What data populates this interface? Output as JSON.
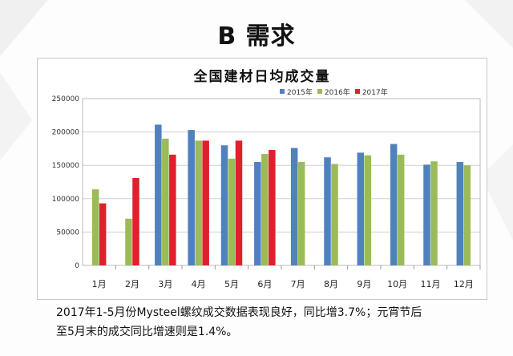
{
  "page": {
    "title": "B 需求"
  },
  "caption": {
    "line1": "2017年1-5月份Mysteel螺纹成交数据表现良好，同比增3.7%；元宵节后",
    "line2": "至5月末的成交同比增速则是1.4%。"
  },
  "chart_data": {
    "type": "bar",
    "title": "全国建材日均成交量",
    "categories": [
      "1月",
      "2月",
      "3月",
      "4月",
      "5月",
      "6月",
      "7月",
      "8月",
      "9月",
      "10月",
      "11月",
      "12月"
    ],
    "series": [
      {
        "name": "2015年",
        "color": "#4f81bd",
        "values": [
          null,
          null,
          211000,
          203000,
          180000,
          155000,
          176000,
          162000,
          169000,
          182000,
          151000,
          155000
        ]
      },
      {
        "name": "2016年",
        "color": "#9bbb59",
        "values": [
          114000,
          70000,
          190000,
          187000,
          160000,
          167000,
          155000,
          152000,
          165000,
          166000,
          156000,
          150000
        ]
      },
      {
        "name": "2017年",
        "color": "#e0202e",
        "values": [
          93000,
          131000,
          166000,
          187000,
          187000,
          173000,
          null,
          null,
          null,
          null,
          null,
          null
        ]
      }
    ],
    "y_ticks": [
      "0",
      "50000",
      "100000",
      "150000",
      "200000",
      "250000"
    ],
    "ylim": [
      0,
      250000
    ],
    "grid": true,
    "legend_position": "top-right"
  }
}
